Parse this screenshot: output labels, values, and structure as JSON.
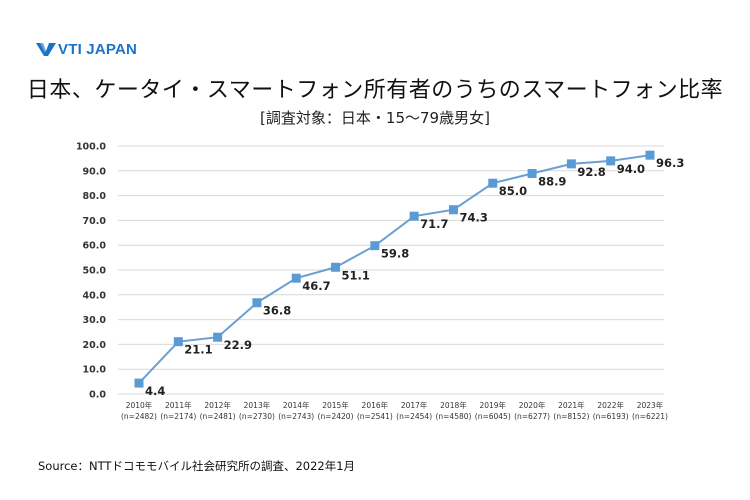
{
  "logo": {
    "text": "VTI JAPAN",
    "color": "#1a73c9"
  },
  "source": "Source：NTTドコモモバイル社会研究所の調査、2022年1月",
  "chart_data": {
    "type": "line",
    "title": "日本、ケータイ・スマートフォン所有者のうちのスマートフォン比率",
    "subtitle": "[調査対象：日本・15〜79歳男女]",
    "categories": [
      "2010年",
      "2011年",
      "2012年",
      "2013年",
      "2014年",
      "2015年",
      "2016年",
      "2017年",
      "2018年",
      "2019年",
      "2020年",
      "2021年",
      "2022年",
      "2023年"
    ],
    "sample_sizes": [
      "(n=2482)",
      "(n=2174)",
      "(n=2481)",
      "(n=2730)",
      "(n=2743)",
      "(n=2420)",
      "(n=2541)",
      "(n=2454)",
      "(n=4580)",
      "(n=6045)",
      "(n=6277)",
      "(n=8152)",
      "(n=6193)",
      "(n=6221)"
    ],
    "values": [
      4.4,
      21.1,
      22.9,
      36.8,
      46.7,
      51.1,
      59.8,
      71.7,
      74.3,
      85.0,
      88.9,
      92.8,
      94.0,
      96.3
    ],
    "value_labels": [
      "4.4",
      "21.1",
      "22.9",
      "36.8",
      "46.7",
      "51.1",
      "59.8",
      "71.7",
      "74.3",
      "85.0",
      "88.9",
      "92.8",
      "94.0",
      "96.3"
    ],
    "ylim": [
      0,
      100
    ],
    "yticks": [
      "0.0",
      "10.0",
      "20.0",
      "30.0",
      "40.0",
      "50.0",
      "60.0",
      "70.0",
      "80.0",
      "90.0",
      "100.0"
    ],
    "grid": true,
    "legend": "none",
    "line_color": "#6a9fd4",
    "marker_color": "#5b9bd5",
    "grid_color": "#d9d9d9"
  }
}
